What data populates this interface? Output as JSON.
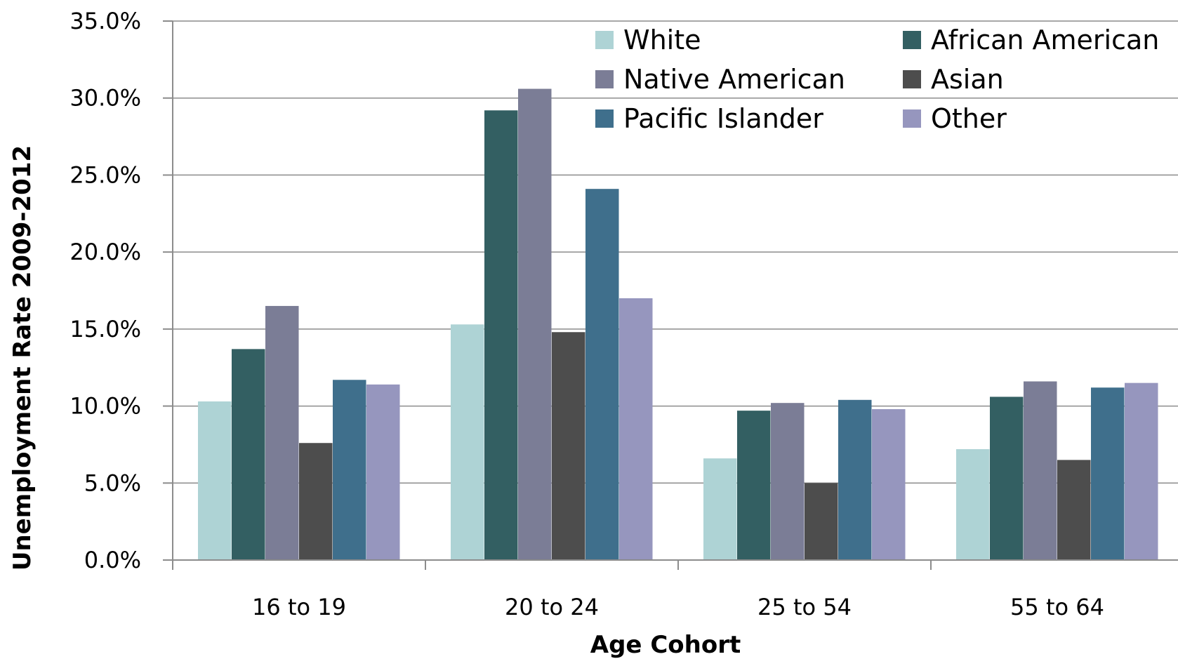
{
  "chart_data": {
    "type": "bar",
    "title": "",
    "xlabel": "Age Cohort",
    "ylabel": "Unemployment Rate 2009-2012",
    "ylim": [
      0,
      35
    ],
    "ytick_values": [
      0,
      5,
      10,
      15,
      20,
      25,
      30,
      35
    ],
    "ytick_labels": [
      "0.0%",
      "5.0%",
      "10.0%",
      "15.0%",
      "20.0%",
      "25.0%",
      "30.0%",
      "35.0%"
    ],
    "grid": true,
    "legend_position": "top-right",
    "categories": [
      "16 to 19",
      "20 to 24",
      "25 to 54",
      "55 to 64"
    ],
    "series": [
      {
        "name": "White",
        "color": "#aed3d5",
        "values": [
          10.3,
          15.3,
          6.6,
          7.2
        ]
      },
      {
        "name": "African American",
        "color": "#335f62",
        "values": [
          13.7,
          29.2,
          9.7,
          10.6
        ]
      },
      {
        "name": "Native American",
        "color": "#7b7d96",
        "values": [
          16.5,
          30.6,
          10.2,
          11.6
        ]
      },
      {
        "name": "Asian",
        "color": "#4d4d4d",
        "values": [
          7.6,
          14.8,
          5.0,
          6.5
        ]
      },
      {
        "name": "Pacific Islander",
        "color": "#3f6f8c",
        "values": [
          11.7,
          24.1,
          10.4,
          11.2
        ]
      },
      {
        "name": "Other",
        "color": "#9696be",
        "values": [
          11.4,
          17.0,
          9.8,
          11.5
        ]
      }
    ]
  }
}
